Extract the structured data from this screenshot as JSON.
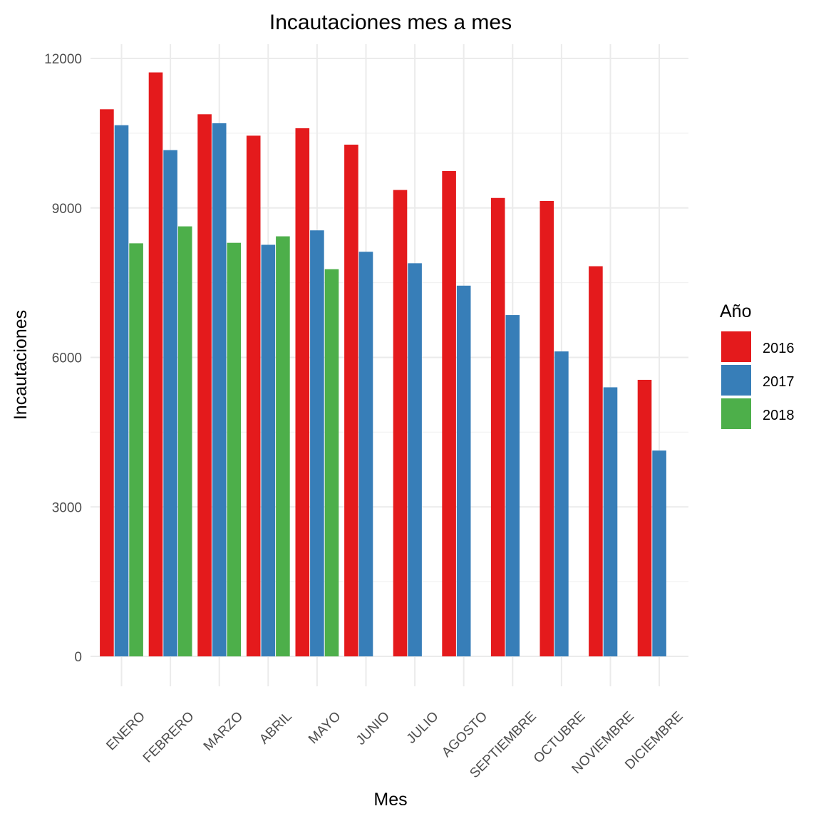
{
  "chart_data": {
    "type": "bar",
    "title": "Incautaciones mes a mes",
    "xlabel": "Mes",
    "ylabel": "Incautaciones",
    "ylim": [
      0,
      12300
    ],
    "yticks": [
      0,
      3000,
      6000,
      9000,
      12000
    ],
    "yticks_labels": [
      "0",
      "3000",
      "6000",
      "9000",
      "12000"
    ],
    "legend_title": "Año",
    "legend_position": "right",
    "categories": [
      "ENERO",
      "FEBRERO",
      "MARZO",
      "ABRIL",
      "MAYO",
      "JUNIO",
      "JULIO",
      "AGOSTO",
      "SEPTIEMBRE",
      "OCTUBRE",
      "NOVIEMBRE",
      "DICIEMBRE"
    ],
    "series": [
      {
        "name": "2016",
        "color": "#E41A1C",
        "values": [
          10980,
          11720,
          10880,
          10450,
          10600,
          10270,
          9360,
          9740,
          9200,
          9140,
          7830,
          5550
        ]
      },
      {
        "name": "2017",
        "color": "#377EB8",
        "values": [
          10660,
          10160,
          10700,
          8260,
          8550,
          8120,
          7890,
          7440,
          6850,
          6120,
          5400,
          4130
        ]
      },
      {
        "name": "2018",
        "color": "#4DAF4A",
        "values": [
          8290,
          8630,
          8300,
          8430,
          7770,
          null,
          null,
          null,
          null,
          null,
          null,
          null
        ]
      }
    ]
  }
}
